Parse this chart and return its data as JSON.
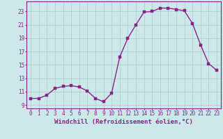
{
  "x": [
    0,
    1,
    2,
    3,
    4,
    5,
    6,
    7,
    8,
    9,
    10,
    11,
    12,
    13,
    14,
    15,
    16,
    17,
    18,
    19,
    20,
    21,
    22,
    23
  ],
  "y": [
    10.0,
    10.0,
    10.5,
    11.5,
    11.8,
    11.9,
    11.7,
    11.1,
    10.0,
    9.5,
    10.8,
    16.2,
    19.0,
    21.0,
    22.9,
    23.0,
    23.5,
    23.5,
    23.3,
    23.1,
    21.2,
    18.0,
    15.2,
    14.2
  ],
  "line_color": "#882288",
  "marker_color": "#882288",
  "bg_color": "#cce8e8",
  "grid_color": "#aacccc",
  "xlabel": "Windchill (Refroidissement éolien,°C)",
  "xlim": [
    -0.5,
    23.5
  ],
  "ylim": [
    8.5,
    24.5
  ],
  "yticks": [
    9,
    11,
    13,
    15,
    17,
    19,
    21,
    23
  ],
  "xticks": [
    0,
    1,
    2,
    3,
    4,
    5,
    6,
    7,
    8,
    9,
    10,
    11,
    12,
    13,
    14,
    15,
    16,
    17,
    18,
    19,
    20,
    21,
    22,
    23
  ],
  "tick_label_fontsize": 5.5,
  "xlabel_fontsize": 6.5,
  "line_width": 1.0,
  "marker_size": 2.5
}
